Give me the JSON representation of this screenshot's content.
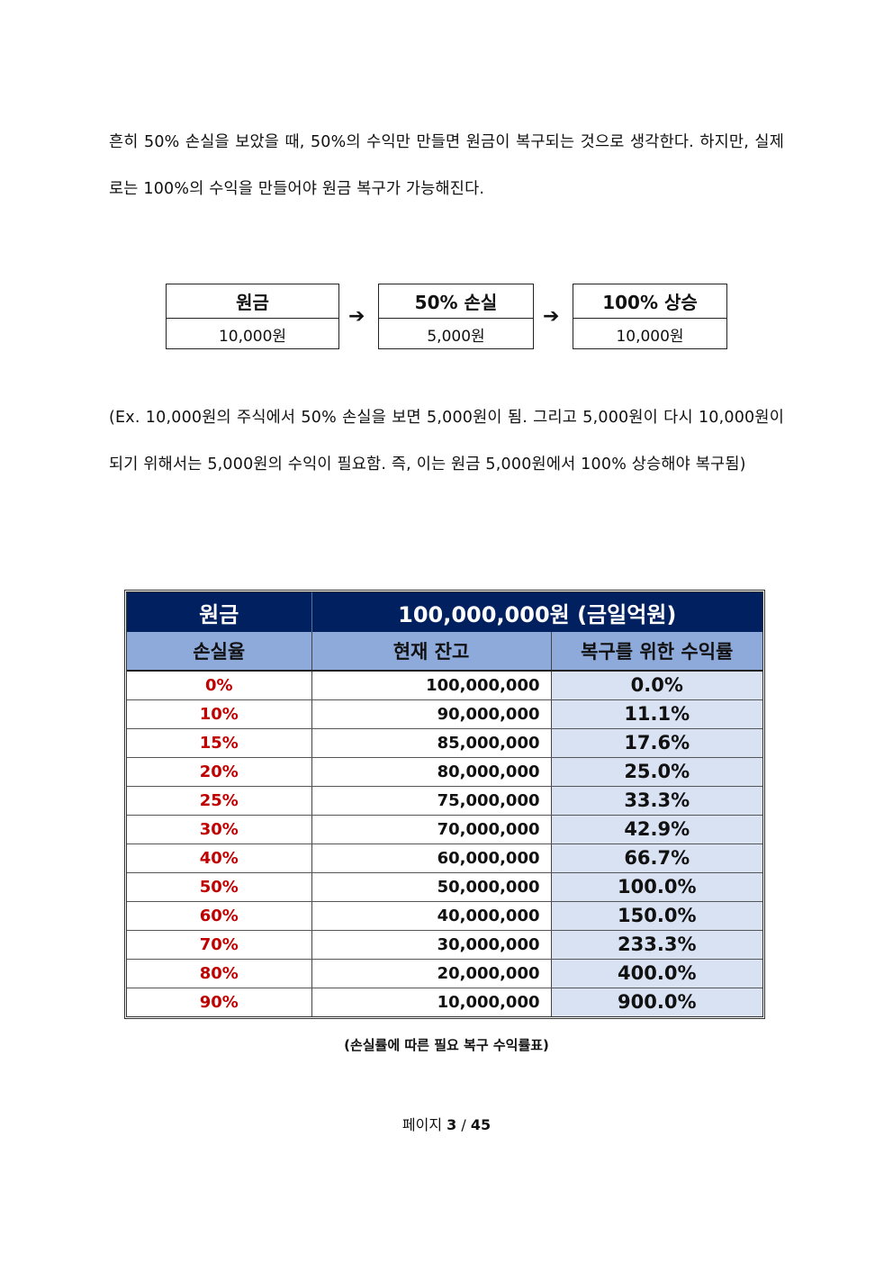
{
  "intro": {
    "text": "흔히 50% 손실을 보았을 때, 50%의 수익만 만들면 원금이 복구되는 것으로 생각한다. 하지만, 실제로는 100%의 수익을 만들어야 원금 복구가 가능해진다."
  },
  "flow": {
    "boxes": [
      {
        "title": "원금",
        "value": "10,000원"
      },
      {
        "title": "50% 손실",
        "value": "5,000원"
      },
      {
        "title": "100% 상승",
        "value": "10,000원"
      }
    ],
    "arrow": "➔"
  },
  "example": {
    "text": "(Ex. 10,000원의 주식에서 50% 손실을 보면 5,000원이 됨. 그리고 5,000원이 다시 10,000원이 되기 위해서는 5,000원의 수익이 필요함. 즉, 이는 원금 5,000원에서 100% 상승해야 복구됨)"
  },
  "table": {
    "principal_label": "원금",
    "principal_value": "100,000,000원 (금일억원)",
    "headers": [
      "손실율",
      "현재 잔고",
      "복구를 위한 수익률"
    ],
    "rows": [
      {
        "loss": "0%",
        "balance": "100,000,000",
        "recovery": "0.0%"
      },
      {
        "loss": "10%",
        "balance": "90,000,000",
        "recovery": "11.1%"
      },
      {
        "loss": "15%",
        "balance": "85,000,000",
        "recovery": "17.6%"
      },
      {
        "loss": "20%",
        "balance": "80,000,000",
        "recovery": "25.0%"
      },
      {
        "loss": "25%",
        "balance": "75,000,000",
        "recovery": "33.3%"
      },
      {
        "loss": "30%",
        "balance": "70,000,000",
        "recovery": "42.9%"
      },
      {
        "loss": "40%",
        "balance": "60,000,000",
        "recovery": "66.7%"
      },
      {
        "loss": "50%",
        "balance": "50,000,000",
        "recovery": "100.0%"
      },
      {
        "loss": "60%",
        "balance": "40,000,000",
        "recovery": "150.0%"
      },
      {
        "loss": "70%",
        "balance": "30,000,000",
        "recovery": "233.3%"
      },
      {
        "loss": "80%",
        "balance": "20,000,000",
        "recovery": "400.0%"
      },
      {
        "loss": "90%",
        "balance": "10,000,000",
        "recovery": "900.0%"
      }
    ],
    "caption": "(손실률에 따른 필요 복구 수익률표)"
  },
  "footer": {
    "label": "페이지",
    "current": "3",
    "separator": "/",
    "total": "45"
  },
  "colors": {
    "header_dark": "#002060",
    "header_light": "#8eaadb",
    "recovery_bg": "#d9e2f3",
    "loss_text": "#c00000"
  }
}
